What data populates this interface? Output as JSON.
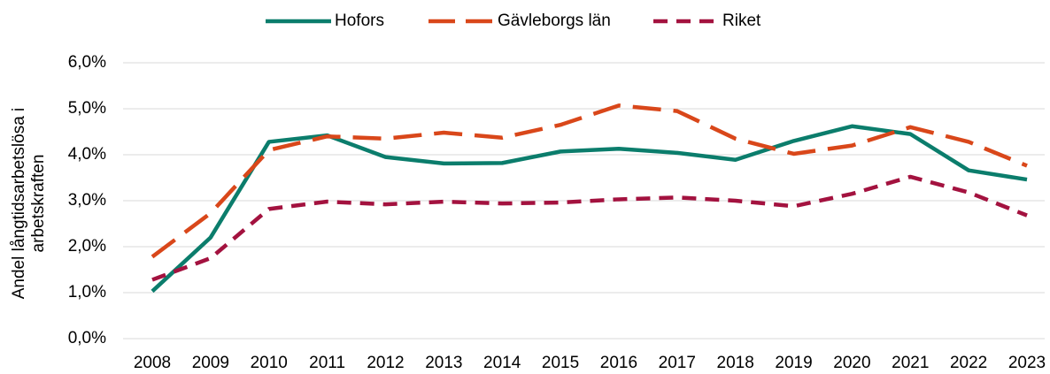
{
  "chart_data": {
    "type": "line",
    "ylabel": [
      "Andel långtidsarbetslösa i",
      "arbetskraften"
    ],
    "categories": [
      "2008",
      "2009",
      "2010",
      "2011",
      "2012",
      "2013",
      "2014",
      "2015",
      "2016",
      "2017",
      "2018",
      "2019",
      "2020",
      "2021",
      "2022",
      "2023"
    ],
    "series": [
      {
        "name": "Hofors",
        "color": "#0b7d6c",
        "values": [
          1.03,
          2.2,
          4.28,
          4.42,
          3.95,
          3.81,
          3.82,
          4.07,
          4.13,
          4.04,
          3.89,
          4.3,
          4.62,
          4.45,
          3.66,
          3.46
        ]
      },
      {
        "name": "Gävleborgs län",
        "color": "#d9471a",
        "values": [
          1.78,
          2.73,
          4.1,
          4.4,
          4.35,
          4.48,
          4.37,
          4.65,
          5.07,
          4.95,
          4.35,
          4.02,
          4.2,
          4.6,
          4.28,
          3.76
        ]
      },
      {
        "name": "Riket",
        "color": "#a3123f",
        "values": [
          1.28,
          1.75,
          2.82,
          2.98,
          2.92,
          2.98,
          2.94,
          2.96,
          3.03,
          3.07,
          3.0,
          2.88,
          3.15,
          3.52,
          3.18,
          2.68
        ]
      }
    ],
    "ylim": [
      0,
      6
    ],
    "yticks": [
      {
        "value": 0,
        "label": "0,0%"
      },
      {
        "value": 1,
        "label": "1,0%"
      },
      {
        "value": 2,
        "label": "2,0%"
      },
      {
        "value": 3,
        "label": "3,0%"
      },
      {
        "value": 4,
        "label": "4,0%"
      },
      {
        "value": 5,
        "label": "5,0%"
      },
      {
        "value": 6,
        "label": "6,0%"
      }
    ],
    "grid": true,
    "legend": "top"
  }
}
